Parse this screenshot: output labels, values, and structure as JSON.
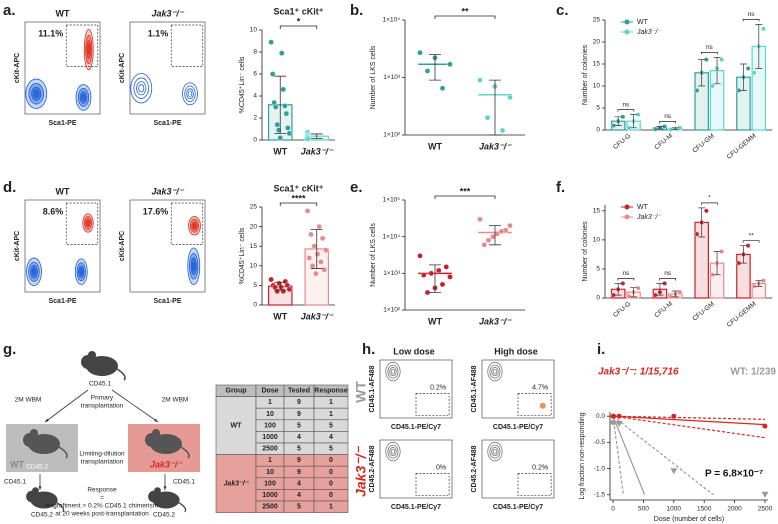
{
  "panel_labels": [
    "a.",
    "b.",
    "c.",
    "d.",
    "e.",
    "f.",
    "g.",
    "h.",
    "i."
  ],
  "chart_data": [
    {
      "type": "bar",
      "title": "Sca1⁺ cKit⁺",
      "y_label": "%CD45⁺Lin⁻ cells",
      "categories": [
        "WT",
        "Jak3⁻/⁻"
      ],
      "colors": [
        "#2f9e9c",
        "#5fd3cf"
      ],
      "values": [
        3.2,
        0.35
      ],
      "errors": [
        2.6,
        0.2
      ],
      "points": [
        [
          8.9,
          7.9,
          6.0,
          4.6,
          3.4,
          3.1,
          3.0,
          2.4,
          1.4,
          1.1,
          0.9,
          0.6,
          0.2
        ],
        [
          0.7,
          0.5,
          0.4,
          0.3,
          0.3,
          0.2,
          0.1
        ]
      ],
      "ylim": [
        0,
        10
      ],
      "yticks": [
        0,
        2,
        4,
        6,
        8,
        10
      ],
      "significance": "*"
    },
    {
      "type": "dot",
      "y_label": "Number of LKS cells",
      "log": true,
      "categories": [
        "WT",
        "Jak3⁻/⁻"
      ],
      "colors": [
        "#2f9e9c",
        "#5fd3cf"
      ],
      "values": [
        1700,
        500
      ],
      "errors": [
        800,
        400
      ],
      "points": [
        [
          2700,
          2200,
          1700,
          1300,
          650
        ],
        [
          900,
          700,
          450,
          200,
          120
        ]
      ],
      "ylim": [
        100,
        10000
      ],
      "yticks": [
        {
          "value": 100,
          "label": "1×10²"
        },
        {
          "value": 1000,
          "label": "1×10³"
        },
        {
          "value": 10000,
          "label": "1×10⁴"
        }
      ],
      "significance": "**"
    },
    {
      "type": "grouped-bar",
      "y_label": "Number of colonies",
      "categories": [
        "CFU-G",
        "CFU-M",
        "CFU-GM",
        "CFU-GEMM"
      ],
      "legend": "upper left",
      "series": [
        {
          "name": "WT",
          "color": "#2f9e9c",
          "values": [
            2,
            0.5,
            13,
            12
          ],
          "errors": [
            1,
            0.3,
            3,
            3
          ],
          "points": [
            [
              1,
              2,
              3
            ],
            [
              0.2,
              0.5,
              0.8
            ],
            [
              9,
              13,
              16
            ],
            [
              9,
              12,
              14
            ]
          ]
        },
        {
          "name": "Jak3⁻/⁻",
          "color": "#5fd3cf",
          "values": [
            2,
            0.3,
            13.5,
            19
          ],
          "errors": [
            1.5,
            0.2,
            3,
            5
          ],
          "points": [
            [
              0.5,
              2,
              3.5
            ],
            [
              0.1,
              0.3,
              0.5
            ],
            [
              10,
              14,
              16
            ],
            [
              13,
              19,
              23
            ]
          ]
        }
      ],
      "ylim": [
        0,
        25
      ],
      "yticks": [
        0,
        5,
        10,
        15,
        20,
        25
      ],
      "significance": [
        "ns",
        "ns",
        "ns",
        "ns"
      ]
    },
    {
      "type": "bar",
      "title": "Sca1⁺ cKit⁺",
      "y_label": "%CD45⁺Lin⁻ cells",
      "categories": [
        "WT",
        "Jak3⁻/⁻"
      ],
      "colors": [
        "#c8202a",
        "#e58b8e"
      ],
      "values": [
        4.8,
        14.3
      ],
      "errors": [
        1,
        5
      ],
      "points": [
        [
          6.5,
          6,
          5.5,
          5,
          5,
          4.5,
          4.5,
          4,
          3.5,
          3.5
        ],
        [
          24,
          20,
          18,
          17,
          15,
          14,
          13,
          12,
          11,
          10,
          9,
          8
        ]
      ],
      "ylim": [
        0,
        25
      ],
      "yticks": [
        0,
        5,
        10,
        15,
        20,
        25
      ],
      "significance": "****"
    },
    {
      "type": "dot",
      "y_label": "Number of LKS cells",
      "log": true,
      "categories": [
        "WT",
        "Jak3⁻/⁻"
      ],
      "colors": [
        "#c8202a",
        "#e58b8e"
      ],
      "values": [
        1000,
        13000
      ],
      "errors": [
        700,
        7000
      ],
      "points": [
        [
          3000,
          1500,
          1200,
          1000,
          900,
          800,
          500,
          400,
          300
        ],
        [
          30000,
          20000,
          15000,
          14000,
          12000,
          10000,
          8000,
          6000
        ]
      ],
      "ylim": [
        100,
        100000
      ],
      "yticks": [
        {
          "value": 100,
          "label": "1×10²"
        },
        {
          "value": 1000,
          "label": "1×10³"
        },
        {
          "value": 10000,
          "label": "1×10⁴"
        },
        {
          "value": 100000,
          "label": "1×10⁵"
        }
      ],
      "significance": "***"
    },
    {
      "type": "grouped-bar",
      "y_label": "Number of colonies",
      "categories": [
        "CFU-G",
        "CFU-M",
        "CFU-GM",
        "CFU-GEMM"
      ],
      "legend": "upper left",
      "series": [
        {
          "name": "WT",
          "color": "#c8202a",
          "values": [
            1.5,
            1.5,
            13,
            7.5
          ],
          "errors": [
            1,
            1,
            2.5,
            1.5
          ],
          "points": [
            [
              0.5,
              1.5,
              2.5
            ],
            [
              0.5,
              1,
              2.5
            ],
            [
              11,
              13,
              15
            ],
            [
              6,
              7.5,
              9
            ]
          ]
        },
        {
          "name": "Jak3⁻/⁻",
          "color": "#e58b8e",
          "values": [
            1,
            0.7,
            6,
            2.5
          ],
          "errors": [
            0.8,
            0.5,
            2,
            0.5
          ],
          "points": [
            [
              0.3,
              1,
              1.7
            ],
            [
              0.2,
              0.7,
              1
            ],
            [
              4,
              6,
              8
            ],
            [
              2,
              2.5,
              3
            ]
          ]
        }
      ],
      "ylim": [
        0,
        16
      ],
      "yticks": [
        0,
        5,
        10,
        15
      ],
      "significance": [
        "ns",
        "ns",
        "*",
        "**"
      ]
    },
    {
      "type": "line",
      "x_label": "Dose (number of cells)",
      "y_label": "Log fraction non-responding",
      "xlim": [
        -50,
        2550
      ],
      "xticks": [
        0,
        500,
        1000,
        1500,
        2000,
        2500
      ],
      "ylim": [
        -1.6,
        0.08
      ],
      "yticks": [
        {
          "value": 0,
          "label": "0.0"
        },
        -0.5,
        {
          "value": -1,
          "label": "-1.0"
        },
        -1.5
      ],
      "annotations": [
        {
          "text": "Jak3⁻/⁻: 1/15,716",
          "color": "#d7261e"
        },
        {
          "text": "WT: 1/239",
          "color": "#9a9a9a"
        },
        {
          "text": "P = 6.8×10⁻⁷",
          "color": "#111"
        }
      ],
      "series": [
        {
          "color": "#d7261e",
          "x": [
            0,
            2500
          ],
          "values": [
            0,
            -0.16
          ]
        },
        {
          "color": "#d7261e",
          "dash": true,
          "x": [
            0,
            2500
          ],
          "values": [
            0,
            -0.41
          ]
        },
        {
          "color": "#d7261e",
          "dash": true,
          "x": [
            0,
            2500
          ],
          "values": [
            0,
            -0.06
          ]
        },
        {
          "color": "#9a9a9a",
          "x": [
            0,
            520
          ],
          "values": [
            0,
            -1.5
          ]
        },
        {
          "color": "#9a9a9a",
          "dash": true,
          "x": [
            0,
            1650
          ],
          "values": [
            0,
            -1.5
          ]
        },
        {
          "color": "#9a9a9a",
          "dash": true,
          "x": [
            0,
            170
          ],
          "values": [
            0,
            -1.5
          ]
        },
        {
          "color": "#d7261e",
          "marker": "circle",
          "x": [
            1,
            10,
            100,
            1000,
            2500
          ],
          "values": [
            0,
            0,
            0,
            0,
            -0.19
          ]
        },
        {
          "color": "#9a9a9a",
          "marker": "circle",
          "x": [
            1,
            10
          ],
          "values": [
            -0.12,
            -0.12
          ]
        },
        {
          "color": "#9a9a9a",
          "marker": "triangle",
          "x": [
            100,
            1000,
            2500
          ],
          "values": [
            -0.15,
            -1.05,
            -1.5
          ]
        }
      ]
    }
  ],
  "flow_a": [
    {
      "title": "WT",
      "percent": "11.1%",
      "x_label": "Sca1-PE",
      "y_label": "cKit-APC"
    },
    {
      "title": "Jak3⁻/⁻",
      "percent": "1.1%",
      "x_label": "Sca1-PE",
      "y_label": "cKit-APC"
    }
  ],
  "flow_d": [
    {
      "title": "WT",
      "percent": "8.6%",
      "x_label": "Sca1-PE",
      "y_label": "cKit-APC"
    },
    {
      "title": "Jak3⁻/⁻",
      "percent": "17.6%",
      "x_label": "Sca1-PE",
      "y_label": "cKit-APC"
    }
  ],
  "flow_h": {
    "columns": [
      "Low dose",
      "High dose"
    ],
    "x_label": "CD45.1-PE/Cy7",
    "rows": [
      {
        "label": "WT",
        "color": "#9a9a9a",
        "y_label": "CD45.1-AF488",
        "percents": [
          "0.2%",
          "4.7%"
        ]
      },
      {
        "label": "Jak3⁻/⁻",
        "color": "#d7261e",
        "y_label": "CD45.2-AF488",
        "percents": [
          "0%",
          "0.2%"
        ]
      }
    ]
  },
  "diagram": {
    "donor": "CD45.1",
    "dose_left": "2M WBM",
    "dose_right": "2M WBM",
    "primary": [
      "Primary",
      "transplantation"
    ],
    "wt": "WT",
    "wt_recipient": "CD45.2",
    "jak3": "Jak3⁻/⁻",
    "limiting": [
      "Limiting-dilution",
      "transplantation"
    ],
    "donor_left": "CD45.1",
    "donor_right": "CD45.1",
    "final_left": "CD45.2",
    "final_right": "CD45.2",
    "response": "Response",
    "equals": "=",
    "criterion": [
      "engraftment > 0.2% CD45.1 chimerism",
      "at 20 weeks post-transplantation"
    ]
  },
  "table": {
    "header": [
      "Group",
      "Dose",
      "Tested",
      "Response"
    ],
    "groups": [
      {
        "name": "WT",
        "color": "#d9d9d9",
        "rows": [
          [
            1,
            9,
            1
          ],
          [
            10,
            9,
            1
          ],
          [
            100,
            5,
            5
          ],
          [
            1000,
            4,
            4
          ],
          [
            2500,
            5,
            5
          ]
        ]
      },
      {
        "name": "Jak3⁻/⁻",
        "color": "#e6a19c",
        "rows": [
          [
            1,
            9,
            0
          ],
          [
            10,
            9,
            0
          ],
          [
            100,
            4,
            0
          ],
          [
            1000,
            4,
            0
          ],
          [
            2500,
            5,
            1
          ]
        ]
      }
    ]
  }
}
